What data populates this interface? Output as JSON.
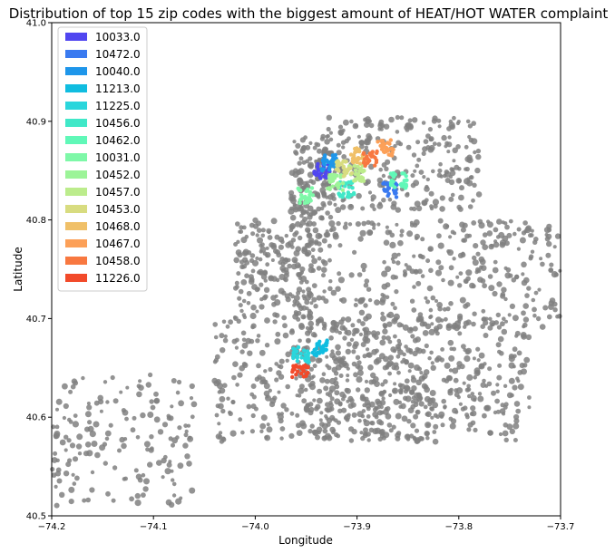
{
  "chart_data": {
    "type": "scatter",
    "title": "Distribution of top 15 zip codes with the biggest amount of HEAT/HOT WATER complaint",
    "xlabel": "Longitude",
    "ylabel": "Latitude",
    "xlim": [
      -74.2,
      -73.7
    ],
    "ylim": [
      40.5,
      41.0
    ],
    "xticks": [
      -74.2,
      -74.1,
      -74.0,
      -73.9,
      -73.8,
      -73.7
    ],
    "xtick_labels": [
      "−74.2",
      "−74.1",
      "−74.0",
      "−73.9",
      "−73.8",
      "−73.7"
    ],
    "yticks": [
      40.5,
      40.6,
      40.7,
      40.8,
      40.9,
      41.0
    ],
    "ytick_labels": [
      "40.5",
      "40.6",
      "40.7",
      "40.8",
      "40.9",
      "41.0"
    ],
    "grid": false,
    "legend_position": "upper-left",
    "background_points_color": "#808080",
    "series": [
      {
        "name": "10033.0",
        "color": "#5046f0",
        "center": [
          -73.934,
          40.85
        ]
      },
      {
        "name": "10472.0",
        "color": "#3a7af0",
        "center": [
          -73.868,
          40.83
        ]
      },
      {
        "name": "10040.0",
        "color": "#1e96ea",
        "center": [
          -73.928,
          40.858
        ]
      },
      {
        "name": "11213.0",
        "color": "#10bde0",
        "center": [
          -73.937,
          40.67
        ]
      },
      {
        "name": "11225.0",
        "color": "#2ad6dc",
        "center": [
          -73.955,
          40.663
        ]
      },
      {
        "name": "10456.0",
        "color": "#40e8c8",
        "center": [
          -73.91,
          40.831
        ]
      },
      {
        "name": "10462.0",
        "color": "#60f8b8",
        "center": [
          -73.859,
          40.84
        ]
      },
      {
        "name": "10031.0",
        "color": "#7ef8a8",
        "center": [
          -73.95,
          40.825
        ]
      },
      {
        "name": "10452.0",
        "color": "#9cf498",
        "center": [
          -73.921,
          40.838
        ]
      },
      {
        "name": "10457.0",
        "color": "#bcec8c",
        "center": [
          -73.9,
          40.847
        ]
      },
      {
        "name": "10453.0",
        "color": "#d8dc80",
        "center": [
          -73.913,
          40.852
        ]
      },
      {
        "name": "10468.0",
        "color": "#f0c068",
        "center": [
          -73.898,
          40.865
        ]
      },
      {
        "name": "10467.0",
        "color": "#fca058",
        "center": [
          -73.872,
          40.873
        ]
      },
      {
        "name": "10458.0",
        "color": "#f87840",
        "center": [
          -73.887,
          40.862
        ]
      },
      {
        "name": "11226.0",
        "color": "#f24a2a",
        "center": [
          -73.956,
          40.647
        ]
      }
    ]
  }
}
